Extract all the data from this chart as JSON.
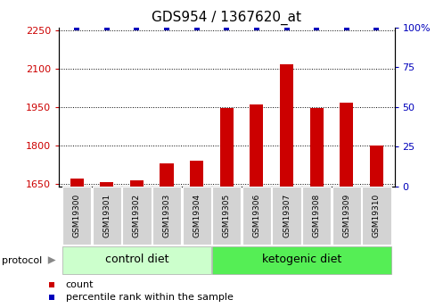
{
  "title": "GDS954 / 1367620_at",
  "samples": [
    "GSM19300",
    "GSM19301",
    "GSM19302",
    "GSM19303",
    "GSM19304",
    "GSM19305",
    "GSM19306",
    "GSM19307",
    "GSM19308",
    "GSM19309",
    "GSM19310"
  ],
  "counts": [
    1672,
    1655,
    1665,
    1730,
    1740,
    1945,
    1960,
    2118,
    1945,
    1968,
    1800
  ],
  "percentile_ranks": [
    100,
    100,
    100,
    100,
    100,
    100,
    100,
    100,
    100,
    100,
    100
  ],
  "groups": [
    {
      "label": "control diet",
      "start": 0,
      "end": 4,
      "color": "#ccffcc"
    },
    {
      "label": "ketogenic diet",
      "start": 5,
      "end": 10,
      "color": "#55ee55"
    }
  ],
  "protocol_label": "protocol",
  "ylim_left": [
    1640,
    2260
  ],
  "ylim_right": [
    0,
    100
  ],
  "yticks_left": [
    1650,
    1800,
    1950,
    2100,
    2250
  ],
  "yticks_right": [
    0,
    25,
    50,
    75,
    100
  ],
  "ytick_right_labels": [
    "0",
    "25",
    "50",
    "75",
    "100%"
  ],
  "bar_color": "#cc0000",
  "scatter_color": "#0000bb",
  "bar_bottom": 1640,
  "legend_count_label": "count",
  "legend_pct_label": "percentile rank within the sample",
  "title_fontsize": 11,
  "tick_label_fontsize": 8,
  "sample_fontsize": 6.5,
  "group_fontsize": 9,
  "legend_fontsize": 8,
  "protocol_fontsize": 8
}
